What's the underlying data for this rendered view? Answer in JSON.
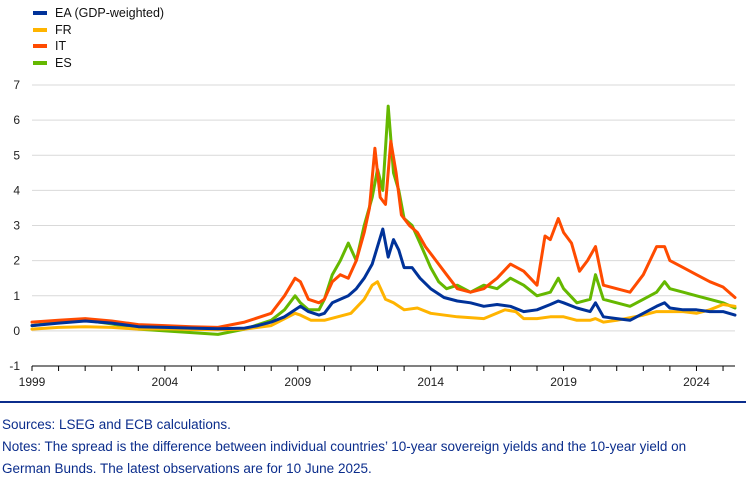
{
  "chart_data": {
    "type": "line",
    "title": "",
    "xlabel": "",
    "ylabel": "",
    "ylim": [
      -1,
      7
    ],
    "yticks": [
      -1,
      0,
      1,
      2,
      3,
      4,
      5,
      6,
      7
    ],
    "xlim": [
      1999.0,
      2025.45
    ],
    "xticks": [
      1999,
      2004,
      2009,
      2014,
      2019,
      2024
    ],
    "grid": "horizontal",
    "legend_position": "top-left",
    "series": [
      {
        "name": "EA (GDP-weighted)",
        "color": "#003299",
        "x": [
          1999.0,
          2000.0,
          2001.0,
          2002.0,
          2003.0,
          2004.0,
          2005.0,
          2006.0,
          2007.0,
          2007.5,
          2008.0,
          2008.5,
          2008.9,
          2009.1,
          2009.4,
          2009.8,
          2010.0,
          2010.3,
          2010.6,
          2010.9,
          2011.2,
          2011.5,
          2011.8,
          2012.0,
          2012.2,
          2012.4,
          2012.6,
          2012.8,
          2013.0,
          2013.3,
          2013.6,
          2014.0,
          2014.5,
          2015.0,
          2015.5,
          2016.0,
          2016.5,
          2017.0,
          2017.5,
          2018.0,
          2018.5,
          2018.8,
          2019.0,
          2019.5,
          2020.0,
          2020.2,
          2020.5,
          2021.0,
          2021.5,
          2022.0,
          2022.5,
          2022.8,
          2023.0,
          2023.5,
          2024.0,
          2024.5,
          2025.0,
          2025.45
        ],
        "y": [
          0.15,
          0.22,
          0.28,
          0.22,
          0.12,
          0.1,
          0.08,
          0.06,
          0.08,
          0.15,
          0.25,
          0.4,
          0.6,
          0.7,
          0.55,
          0.45,
          0.5,
          0.8,
          0.9,
          1.0,
          1.2,
          1.5,
          1.9,
          2.4,
          2.9,
          2.1,
          2.6,
          2.3,
          1.8,
          1.8,
          1.5,
          1.2,
          0.95,
          0.85,
          0.8,
          0.7,
          0.75,
          0.7,
          0.55,
          0.6,
          0.75,
          0.85,
          0.8,
          0.65,
          0.55,
          0.8,
          0.4,
          0.35,
          0.3,
          0.5,
          0.7,
          0.8,
          0.65,
          0.6,
          0.6,
          0.55,
          0.55,
          0.45
        ]
      },
      {
        "name": "FR",
        "color": "#ffb400",
        "x": [
          1999.0,
          2000.0,
          2001.0,
          2002.0,
          2003.0,
          2004.0,
          2005.0,
          2006.0,
          2007.0,
          2008.0,
          2008.9,
          2009.1,
          2009.5,
          2010.0,
          2010.5,
          2011.0,
          2011.5,
          2011.8,
          2012.0,
          2012.3,
          2012.6,
          2013.0,
          2013.5,
          2014.0,
          2015.0,
          2016.0,
          2016.8,
          2017.2,
          2017.5,
          2018.0,
          2018.5,
          2019.0,
          2019.5,
          2020.0,
          2020.2,
          2020.5,
          2021.0,
          2022.0,
          2022.5,
          2023.0,
          2023.5,
          2024.0,
          2024.5,
          2025.0,
          2025.45
        ],
        "y": [
          0.05,
          0.1,
          0.12,
          0.1,
          0.05,
          0.06,
          0.04,
          0.03,
          0.05,
          0.15,
          0.5,
          0.45,
          0.3,
          0.3,
          0.4,
          0.5,
          0.9,
          1.3,
          1.4,
          0.9,
          0.8,
          0.6,
          0.65,
          0.5,
          0.4,
          0.35,
          0.6,
          0.55,
          0.35,
          0.35,
          0.4,
          0.4,
          0.3,
          0.3,
          0.35,
          0.25,
          0.3,
          0.45,
          0.55,
          0.55,
          0.55,
          0.5,
          0.6,
          0.75,
          0.7
        ]
      },
      {
        "name": "IT",
        "color": "#ff4b00",
        "x": [
          1999.0,
          2000.0,
          2001.0,
          2002.0,
          2003.0,
          2004.0,
          2005.0,
          2006.0,
          2007.0,
          2008.0,
          2008.5,
          2008.9,
          2009.1,
          2009.4,
          2009.8,
          2010.0,
          2010.3,
          2010.6,
          2010.9,
          2011.2,
          2011.5,
          2011.7,
          2011.9,
          2012.1,
          2012.3,
          2012.5,
          2012.7,
          2012.9,
          2013.2,
          2013.5,
          2013.8,
          2014.2,
          2014.6,
          2015.0,
          2015.5,
          2016.0,
          2016.5,
          2017.0,
          2017.5,
          2018.0,
          2018.3,
          2018.5,
          2018.8,
          2019.0,
          2019.3,
          2019.6,
          2019.9,
          2020.2,
          2020.5,
          2021.0,
          2021.5,
          2022.0,
          2022.5,
          2022.8,
          2023.0,
          2023.5,
          2024.0,
          2024.5,
          2025.0,
          2025.45
        ],
        "y": [
          0.25,
          0.3,
          0.35,
          0.28,
          0.18,
          0.15,
          0.12,
          0.1,
          0.25,
          0.5,
          1.0,
          1.5,
          1.4,
          0.9,
          0.8,
          0.9,
          1.4,
          1.6,
          1.5,
          2.0,
          2.8,
          3.5,
          5.2,
          3.8,
          3.6,
          5.4,
          4.5,
          3.3,
          3.0,
          2.8,
          2.4,
          2.0,
          1.6,
          1.2,
          1.1,
          1.2,
          1.5,
          1.9,
          1.7,
          1.3,
          2.7,
          2.6,
          3.2,
          2.8,
          2.5,
          1.7,
          2.0,
          2.4,
          1.3,
          1.2,
          1.1,
          1.6,
          2.4,
          2.4,
          2.0,
          1.8,
          1.6,
          1.4,
          1.25,
          0.95
        ]
      },
      {
        "name": "ES",
        "color": "#65b800",
        "x": [
          1999.0,
          2000.0,
          2001.0,
          2002.0,
          2003.0,
          2004.0,
          2005.0,
          2006.0,
          2007.0,
          2008.0,
          2008.5,
          2008.9,
          2009.1,
          2009.4,
          2009.8,
          2010.0,
          2010.3,
          2010.6,
          2010.9,
          2011.2,
          2011.5,
          2011.8,
          2012.0,
          2012.2,
          2012.4,
          2012.6,
          2012.8,
          2013.0,
          2013.3,
          2013.6,
          2014.0,
          2014.3,
          2014.6,
          2015.0,
          2015.5,
          2016.0,
          2016.5,
          2017.0,
          2017.5,
          2018.0,
          2018.5,
          2018.8,
          2019.0,
          2019.5,
          2020.0,
          2020.2,
          2020.5,
          2021.0,
          2021.5,
          2022.0,
          2022.5,
          2022.8,
          2023.0,
          2023.5,
          2024.0,
          2024.5,
          2025.0,
          2025.45
        ],
        "y": [
          0.15,
          0.25,
          0.3,
          0.2,
          0.05,
          0.0,
          -0.05,
          -0.1,
          0.05,
          0.3,
          0.6,
          1.0,
          0.8,
          0.6,
          0.6,
          0.9,
          1.6,
          2.0,
          2.5,
          2.0,
          3.0,
          3.8,
          4.6,
          4.0,
          6.4,
          4.5,
          4.0,
          3.2,
          3.0,
          2.5,
          1.8,
          1.4,
          1.2,
          1.3,
          1.1,
          1.3,
          1.2,
          1.5,
          1.3,
          1.0,
          1.1,
          1.5,
          1.2,
          0.8,
          0.9,
          1.6,
          0.9,
          0.8,
          0.7,
          0.9,
          1.1,
          1.4,
          1.2,
          1.1,
          1.0,
          0.9,
          0.8,
          0.65
        ]
      }
    ]
  },
  "footer": {
    "sources": "Sources: LSEG and ECB calculations.",
    "notes_line1": "Notes: The spread is the difference between individual countries’ 10-year sovereign yields and the 10-year yield on",
    "notes_line2": "German Bunds. The latest observations are for 10 June 2025."
  }
}
